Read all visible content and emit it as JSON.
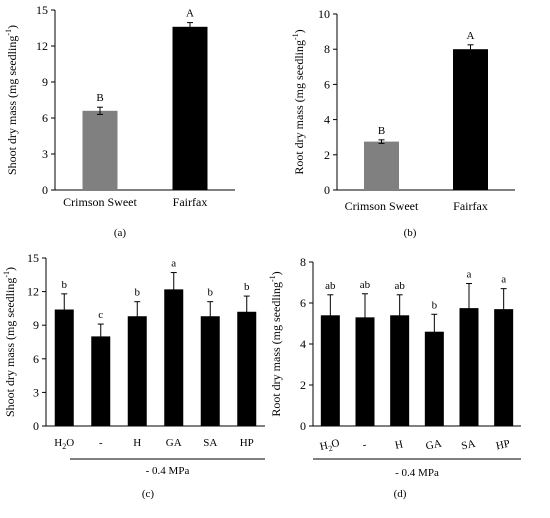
{
  "panels": [
    {
      "panel_label": "(a)",
      "chart_data": {
        "type": "bar",
        "categories": [
          "Crimson Sweet",
          "Fairfax"
        ],
        "values": [
          6.6,
          13.6
        ],
        "errors": [
          0.3,
          0.35
        ],
        "letters": [
          "B",
          "A"
        ],
        "bar_colors": [
          "#808080",
          "#000000"
        ],
        "ylabel_main": "Shoot dry mass (mg seedling",
        "ylabel_sup": "-1",
        "ylabel_end": ")",
        "ylim": [
          0,
          15
        ],
        "yticks": [
          0,
          3,
          6,
          9,
          12,
          15
        ],
        "grid": false
      }
    },
    {
      "panel_label": "(b)",
      "chart_data": {
        "type": "bar",
        "categories": [
          "Crimson Sweet",
          "Fairfax"
        ],
        "values": [
          2.75,
          8.0
        ],
        "errors": [
          0.1,
          0.25
        ],
        "letters": [
          "B",
          "A"
        ],
        "bar_colors": [
          "#808080",
          "#000000"
        ],
        "ylabel_main": "Root dry mass (mg seedling",
        "ylabel_sup": "-1",
        "ylabel_end": ")",
        "ylim": [
          0,
          10
        ],
        "yticks": [
          0,
          2,
          4,
          6,
          8,
          10
        ],
        "grid": false
      }
    },
    {
      "panel_label": "(c)",
      "chart_data": {
        "type": "bar",
        "categories": [
          "H2O",
          "-",
          "H",
          "GA",
          "SA",
          "HP"
        ],
        "values": [
          10.4,
          8.0,
          9.8,
          12.2,
          9.8,
          10.2
        ],
        "errors": [
          1.4,
          1.1,
          1.3,
          1.5,
          1.3,
          1.4
        ],
        "letters": [
          "b",
          "c",
          "b",
          "a",
          "b",
          "b"
        ],
        "bar_colors": [
          "#000000",
          "#000000",
          "#000000",
          "#000000",
          "#000000",
          "#000000"
        ],
        "ylabel_main": "Shoot dry mass (mg seedling",
        "ylabel_sup": "-1",
        "ylabel_end": ")",
        "ylim": [
          0,
          15
        ],
        "yticks": [
          0,
          3,
          6,
          9,
          12,
          15
        ],
        "group_label": "- 0.4 MPa",
        "grid": false
      }
    },
    {
      "panel_label": "(d)",
      "chart_data": {
        "type": "bar",
        "categories": [
          "H2O",
          "-",
          "H",
          "GA",
          "SA",
          "HP"
        ],
        "values": [
          5.4,
          5.3,
          5.4,
          4.6,
          5.75,
          5.7
        ],
        "errors": [
          1.0,
          1.15,
          1.0,
          0.85,
          1.2,
          1.0
        ],
        "letters": [
          "ab",
          "ab",
          "ab",
          "b",
          "a",
          "a"
        ],
        "bar_colors": [
          "#000000",
          "#000000",
          "#000000",
          "#000000",
          "#000000",
          "#000000"
        ],
        "ylabel_main": "Root dry mass (mg seedling",
        "ylabel_sup": "-1",
        "ylabel_end": ")",
        "ylim": [
          0,
          8
        ],
        "yticks": [
          0,
          2,
          4,
          6,
          8
        ],
        "group_label": "- 0.4 MPa",
        "grid": false
      }
    }
  ]
}
